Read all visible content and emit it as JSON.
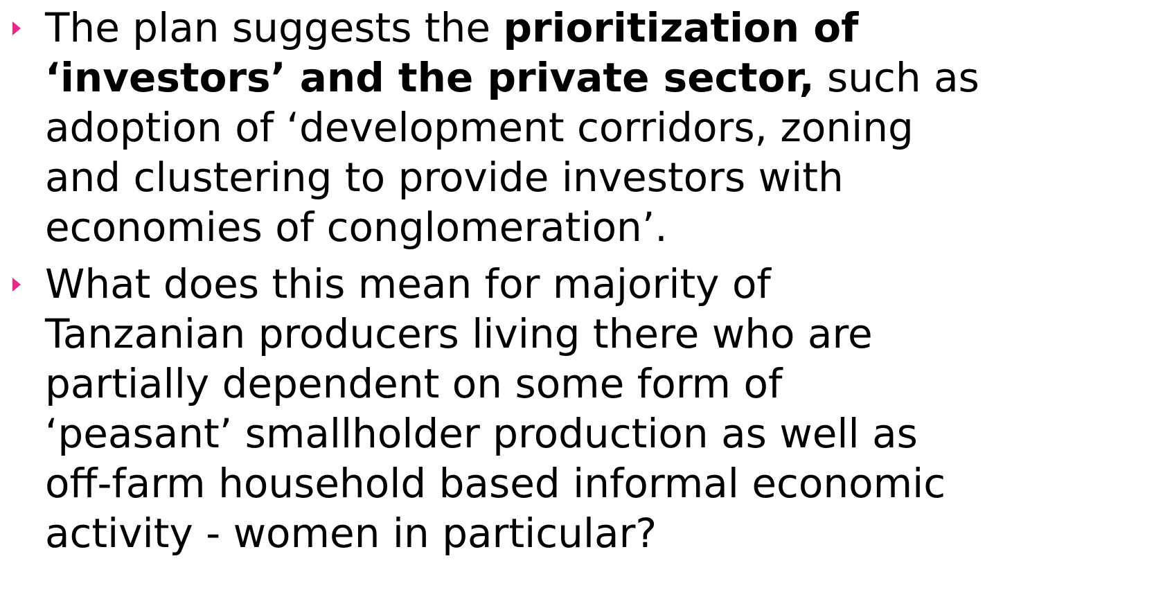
{
  "bullets": [
    {
      "lines": [
        {
          "segments": [
            {
              "text": "The plan suggests the ",
              "bold": false
            },
            {
              "text": "prioritization of",
              "bold": true
            }
          ]
        },
        {
          "segments": [
            {
              "text": "‘investors’ and the private sector,",
              "bold": true
            },
            {
              "text": " such as",
              "bold": false
            }
          ]
        },
        {
          "segments": [
            {
              "text": "adoption of ‘development corridors, zoning",
              "bold": false
            }
          ]
        },
        {
          "segments": [
            {
              "text": "and clustering to provide investors with",
              "bold": false
            }
          ]
        },
        {
          "segments": [
            {
              "text": "economies of conglomeration’.",
              "bold": false
            }
          ]
        }
      ]
    },
    {
      "lines": [
        {
          "segments": [
            {
              "text": "What does this mean for majority of",
              "bold": false
            }
          ]
        },
        {
          "segments": [
            {
              "text": "Tanzanian producers living there who are",
              "bold": false
            }
          ]
        },
        {
          "segments": [
            {
              "text": "partially dependent on some form of",
              "bold": false
            }
          ]
        },
        {
          "segments": [
            {
              "text": "‘peasant’ smallholder production as well as",
              "bold": false
            }
          ]
        },
        {
          "segments": [
            {
              "text": "off-farm household based informal economic",
              "bold": false
            }
          ]
        },
        {
          "segments": [
            {
              "text": "activity - women in particular?",
              "bold": false
            }
          ]
        }
      ]
    }
  ]
}
